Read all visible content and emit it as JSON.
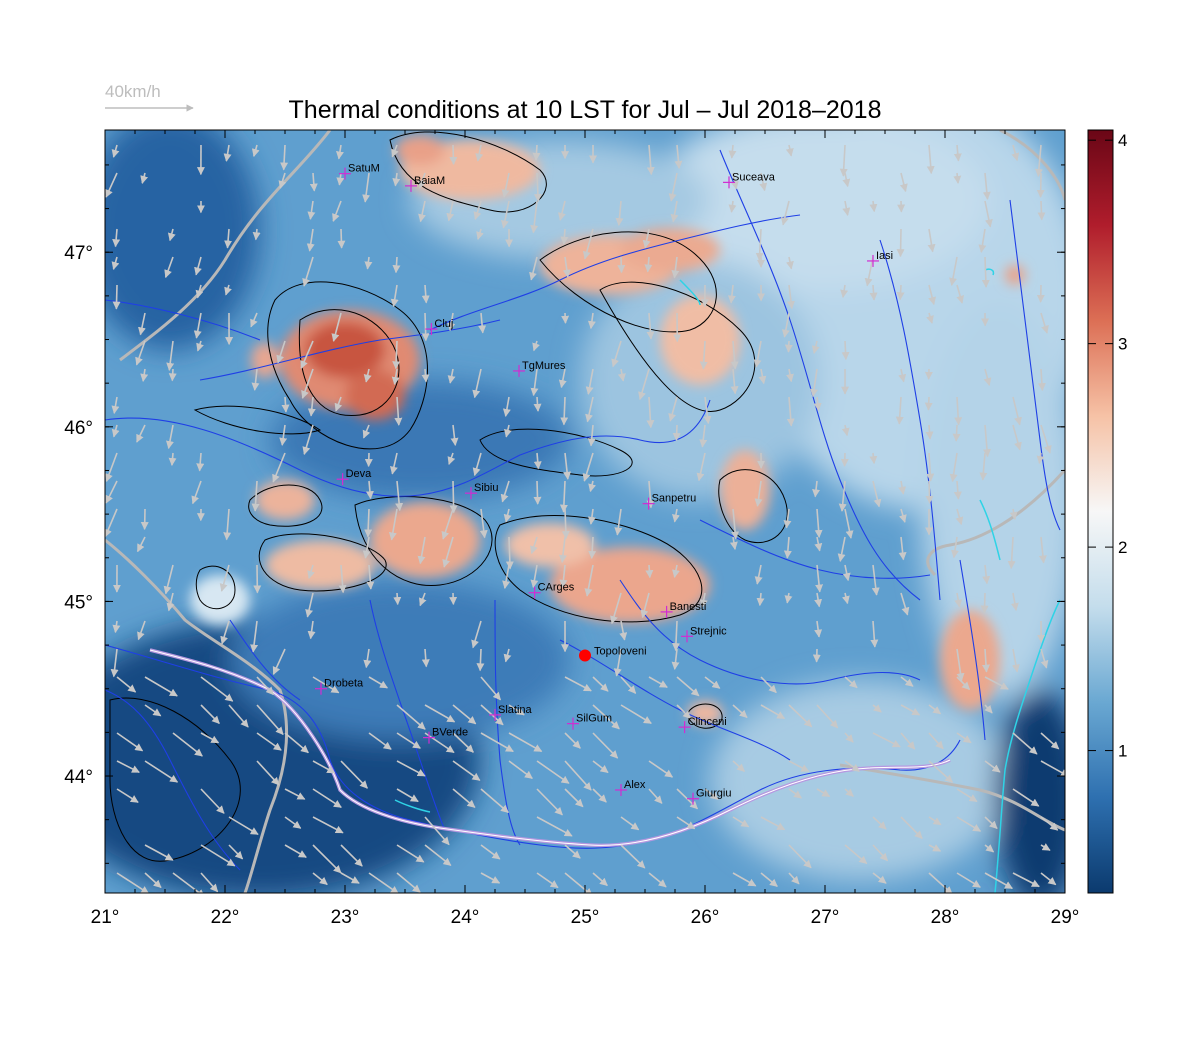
{
  "title": "Thermal conditions at 10 LST for Jul – Jul  2018–2018",
  "wind_legend": {
    "label": "40km/h",
    "color": "#bdbdbd"
  },
  "map": {
    "lon_range": [
      21,
      29
    ],
    "lat_range": [
      43.33,
      47.7
    ],
    "x_ticks": [
      "21°",
      "22°",
      "23°",
      "24°",
      "25°",
      "26°",
      "27°",
      "28°",
      "29°"
    ],
    "y_ticks": [
      "44°",
      "45°",
      "46°",
      "47°"
    ],
    "colors": {
      "river": "#1f3fe6",
      "border": "#b8b8b8",
      "contour": "#000000",
      "city_marker": "#d22cd2",
      "highlight": "#ff0000",
      "coast": "#2fd3e6",
      "wind_arrow": "#c8c8c8"
    }
  },
  "colorbar": {
    "range": [
      0.3,
      4.05
    ],
    "ticks": [
      "1",
      "2",
      "3",
      "4"
    ],
    "stops": [
      "#0b3a6e",
      "#2e70b0",
      "#6aa8d2",
      "#c4ddec",
      "#f7f7f7",
      "#f6c2a6",
      "#dc6f55",
      "#b01d2c",
      "#6a0616"
    ]
  },
  "cities": [
    {
      "name": "SatuM",
      "lon": 23.0,
      "lat": 47.45
    },
    {
      "name": "BaiaM",
      "lon": 23.55,
      "lat": 47.38
    },
    {
      "name": "Suceava",
      "lon": 26.2,
      "lat": 47.4
    },
    {
      "name": "Iasi",
      "lon": 27.4,
      "lat": 46.95
    },
    {
      "name": "Cluj",
      "lon": 23.72,
      "lat": 46.56
    },
    {
      "name": "TgMures",
      "lon": 24.45,
      "lat": 46.32
    },
    {
      "name": "Deva",
      "lon": 22.98,
      "lat": 45.7
    },
    {
      "name": "Sibiu",
      "lon": 24.05,
      "lat": 45.62
    },
    {
      "name": "Sanpetru",
      "lon": 25.53,
      "lat": 45.56
    },
    {
      "name": "CArges",
      "lon": 24.58,
      "lat": 45.05
    },
    {
      "name": "Banesti",
      "lon": 25.68,
      "lat": 44.94
    },
    {
      "name": "Strejnic",
      "lon": 25.85,
      "lat": 44.8
    },
    {
      "name": "Drobeta",
      "lon": 22.8,
      "lat": 44.5
    },
    {
      "name": "Slatina",
      "lon": 24.25,
      "lat": 44.35
    },
    {
      "name": "SilGum",
      "lon": 24.9,
      "lat": 44.3
    },
    {
      "name": "Clinceni",
      "lon": 25.83,
      "lat": 44.28
    },
    {
      "name": "BVerde",
      "lon": 23.7,
      "lat": 44.22
    },
    {
      "name": "Alex",
      "lon": 25.3,
      "lat": 43.92
    },
    {
      "name": "Giurgiu",
      "lon": 25.9,
      "lat": 43.87
    }
  ],
  "highlight": {
    "name": "Topoloveni",
    "lon": 25.0,
    "lat": 44.69
  }
}
